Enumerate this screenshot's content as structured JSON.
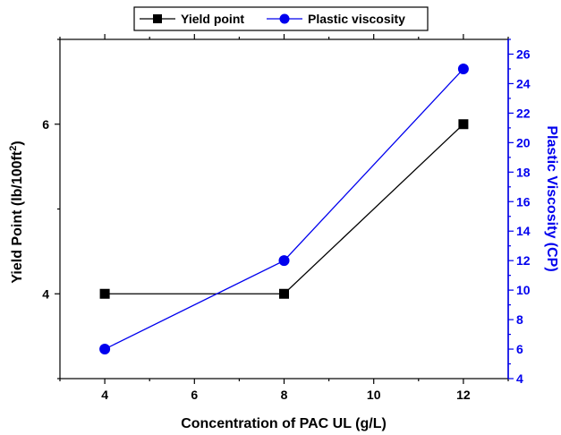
{
  "chart_data": {
    "type": "line",
    "xlabel": "Concentration of PAC UL (g/L)",
    "ylabel_left": "Yield Point (lb/100ft",
    "ylabel_left_sup": "2",
    "ylabel_left_close": ")",
    "ylabel_right": "Plastic Viscosity (CP)",
    "xlim": [
      3,
      13
    ],
    "x_ticks": [
      4,
      6,
      8,
      10,
      12
    ],
    "ylim_left": [
      3.0,
      7.0
    ],
    "y_ticks_left": [
      4,
      6
    ],
    "ylim_right": [
      4,
      27
    ],
    "y_ticks_right": [
      4,
      6,
      8,
      10,
      12,
      14,
      16,
      18,
      20,
      22,
      24,
      26
    ],
    "legend_position": "top",
    "series": [
      {
        "name": "Yield point",
        "axis": "left",
        "color": "#000000",
        "marker": "square",
        "x": [
          4,
          8,
          12
        ],
        "values": [
          4,
          4,
          6
        ]
      },
      {
        "name": "Plastic viscosity",
        "axis": "right",
        "color": "#0000ee",
        "marker": "circle",
        "x": [
          4,
          8,
          12
        ],
        "values": [
          6,
          12,
          25
        ]
      }
    ]
  }
}
